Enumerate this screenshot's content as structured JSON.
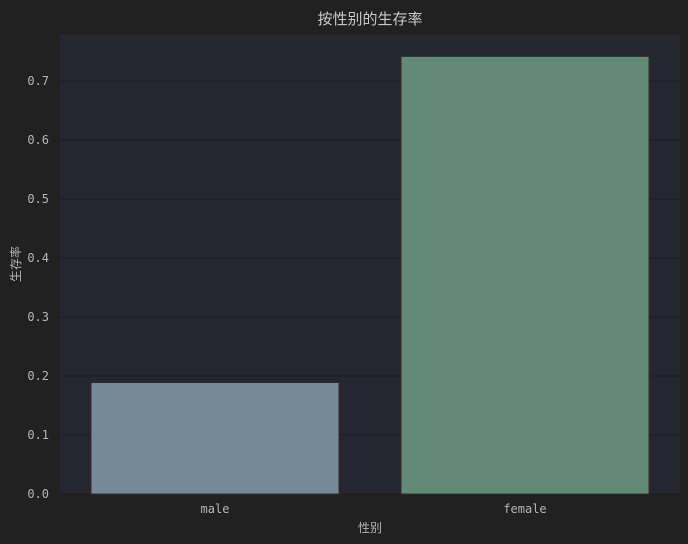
{
  "chart_data": {
    "type": "bar",
    "title": "按性别的生存率",
    "xlabel": "性别",
    "ylabel": "生存率",
    "categories": [
      "male",
      "female"
    ],
    "values": [
      0.189,
      0.742
    ],
    "ylim": [
      0,
      0.78
    ],
    "yticks": [
      "0.0",
      "0.1",
      "0.2",
      "0.3",
      "0.4",
      "0.5",
      "0.6",
      "0.7"
    ],
    "grid": true,
    "legend": "none",
    "colors": {
      "background": "#212121",
      "plot_background": "#262630",
      "grid": "#1c1c22",
      "bars": [
        "#768a96",
        "#628a74"
      ],
      "bar_edge": "#2e2e2e",
      "text": "#b4b4b4"
    }
  }
}
